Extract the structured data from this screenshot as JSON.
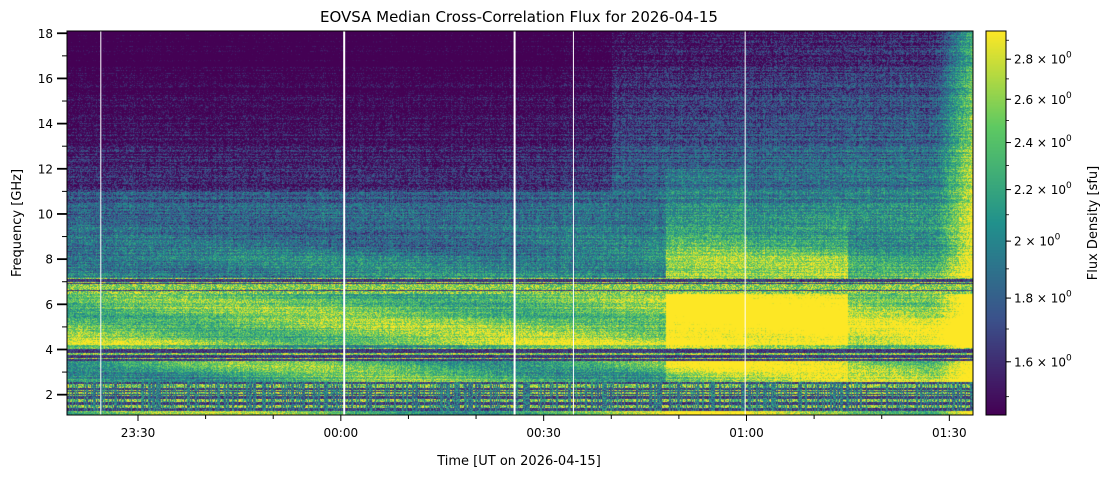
{
  "chart_data": {
    "type": "heatmap",
    "title": "EOVSA Median Cross-Correlation Flux for 2026-04-15",
    "xlabel": "Time [UT on 2026-04-15]",
    "ylabel": "Frequency [GHz]",
    "colorbar_label": "Flux Density [sfu]",
    "colormap": [
      "#440154",
      "#3b528b",
      "#21918c",
      "#5ec962",
      "#fde725"
    ],
    "x_range_minutes_from_0000": [
      -40.5,
      93.5
    ],
    "ylim": [
      1.1,
      18.1
    ],
    "x_ticks": [
      {
        "minutes": -30,
        "label": "23:30"
      },
      {
        "minutes": 0,
        "label": "00:00"
      },
      {
        "minutes": 30,
        "label": "00:30"
      },
      {
        "minutes": 60,
        "label": "01:00"
      },
      {
        "minutes": 90,
        "label": "01:30"
      }
    ],
    "x_minor_ticks_minutes": [
      -20,
      -10,
      10,
      20,
      40,
      50,
      70,
      80
    ],
    "y_ticks": [
      {
        "value": 2,
        "label": "2"
      },
      {
        "value": 4,
        "label": "4"
      },
      {
        "value": 6,
        "label": "6"
      },
      {
        "value": 8,
        "label": "8"
      },
      {
        "value": 10,
        "label": "10"
      },
      {
        "value": 12,
        "label": "12"
      },
      {
        "value": 14,
        "label": "14"
      },
      {
        "value": 16,
        "label": "16"
      },
      {
        "value": 18,
        "label": "18"
      }
    ],
    "colorbar_range": [
      1.45,
      2.95
    ],
    "colorbar_ticks": [
      {
        "value": 1.6,
        "mantissa": "1.6",
        "exponent": "0"
      },
      {
        "value": 1.8,
        "mantissa": "1.8",
        "exponent": "0"
      },
      {
        "value": 2.0,
        "mantissa": "2",
        "exponent": "0"
      },
      {
        "value": 2.2,
        "mantissa": "2.2",
        "exponent": "0"
      },
      {
        "value": 2.4,
        "mantissa": "2.4",
        "exponent": "0"
      },
      {
        "value": 2.6,
        "mantissa": "2.6",
        "exponent": "0"
      },
      {
        "value": 2.8,
        "mantissa": "2.8",
        "exponent": "0"
      }
    ],
    "data_gaps_minutes": [
      -35.5,
      0.5,
      25.7,
      34.4,
      59.8
    ],
    "features": {
      "rfi_bands_ghz": [
        [
          1.3,
          2.6
        ],
        [
          3.5,
          4.1
        ],
        [
          6.5,
          7.2
        ]
      ],
      "flare_onset_minutes": 48,
      "end_saturation_minutes": 88
    }
  }
}
